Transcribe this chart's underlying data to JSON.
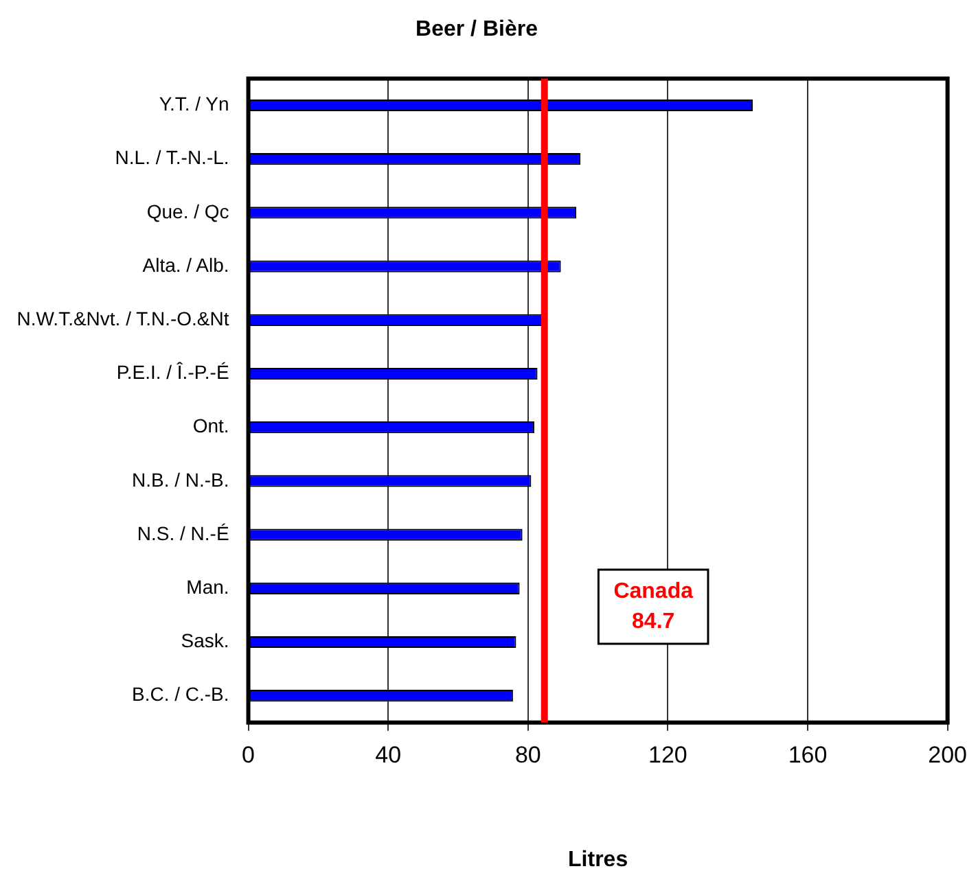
{
  "chart_data": {
    "type": "bar",
    "orientation": "horizontal",
    "title": "Beer / Bière",
    "xlabel": "Litres",
    "categories": [
      "Y.T. / Yn",
      "N.L. / T.-N.-L.",
      "Que. / Qc",
      "Alta. / Alb.",
      "N.W.T.&Nvt. / T.N.-O.&Nt",
      "P.E.I. / Î.-P.-É",
      "Ont.",
      "N.B. / N.-B.",
      "N.S. / N.-É",
      "Man.",
      "Sask.",
      "B.C. / C.-B."
    ],
    "values": [
      144.3,
      95,
      93.8,
      89.4,
      84.4,
      82.7,
      81.8,
      80.9,
      78.4,
      77.6,
      76.6,
      75.7
    ],
    "color": "#0000ff",
    "xlim": [
      0,
      200
    ],
    "xticks": [
      0,
      40,
      80,
      120,
      160,
      200
    ],
    "grid": "x",
    "legend": false,
    "ref_lines": [
      {
        "axis": "x",
        "value": 84.7,
        "label": "Canada 84.7",
        "color": "#ff0000"
      }
    ]
  }
}
